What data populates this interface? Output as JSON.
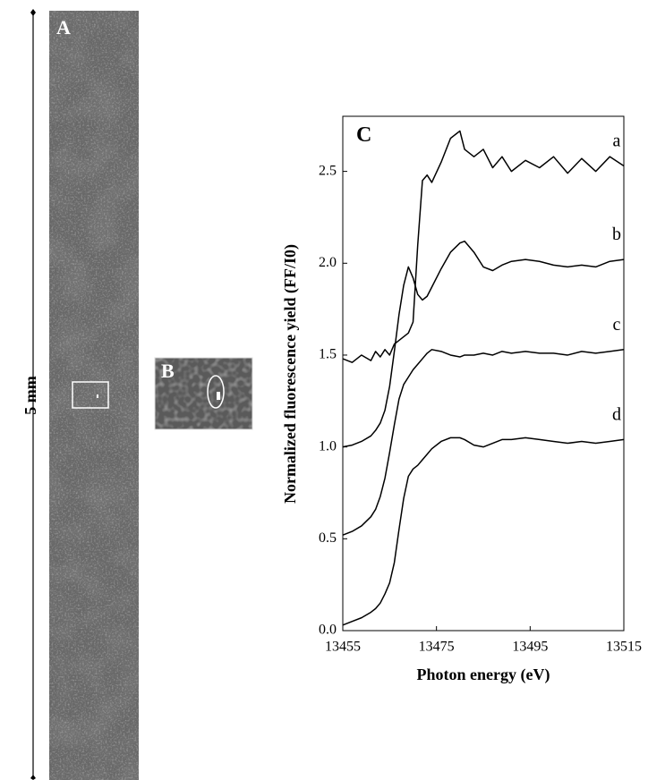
{
  "scale_bar": "5 mm",
  "panels": [
    {
      "label": "A"
    },
    {
      "label": "B"
    }
  ],
  "chart_data": {
    "type": "line",
    "panel_label": "C",
    "x_label": "Photon energy (eV)",
    "y_label": "Normalized fluorescence yield (FF/I0)",
    "xlim": [
      13455,
      13515
    ],
    "xticks": [
      13455,
      13475,
      13495,
      13515
    ],
    "ylim": [
      0,
      2.8
    ],
    "yticks": [
      {
        "value": 0,
        "label": "0.0"
      },
      0.5,
      {
        "value": 1,
        "label": "1.0"
      },
      1.5,
      {
        "value": 2,
        "label": "2.0"
      },
      2.5
    ],
    "x": [
      13455,
      13457,
      13459,
      13461,
      13462,
      13463,
      13464,
      13465,
      13466,
      13467,
      13468,
      13469,
      13470,
      13471,
      13472,
      13473,
      13474,
      13476,
      13478,
      13480,
      13481,
      13483,
      13485,
      13487,
      13489,
      13491,
      13494,
      13497,
      13500,
      13503,
      13506,
      13509,
      13512,
      13515
    ],
    "series": [
      {
        "name": "a",
        "color": "#000000",
        "values": [
          1.48,
          1.46,
          1.5,
          1.47,
          1.52,
          1.49,
          1.53,
          1.5,
          1.56,
          1.58,
          1.6,
          1.62,
          1.68,
          2.1,
          2.45,
          2.48,
          2.44,
          2.55,
          2.68,
          2.72,
          2.62,
          2.58,
          2.62,
          2.52,
          2.58,
          2.5,
          2.56,
          2.52,
          2.58,
          2.49,
          2.57,
          2.5,
          2.58,
          2.53
        ]
      },
      {
        "name": "b",
        "color": "#000000",
        "values": [
          1.0,
          1.01,
          1.03,
          1.06,
          1.09,
          1.13,
          1.2,
          1.33,
          1.52,
          1.72,
          1.88,
          1.98,
          1.92,
          1.83,
          1.8,
          1.82,
          1.87,
          1.97,
          2.06,
          2.11,
          2.12,
          2.06,
          1.98,
          1.96,
          1.99,
          2.01,
          2.02,
          2.01,
          1.99,
          1.98,
          1.99,
          1.98,
          2.01,
          2.02
        ]
      },
      {
        "name": "c",
        "color": "#000000",
        "values": [
          0.52,
          0.54,
          0.57,
          0.62,
          0.66,
          0.73,
          0.83,
          0.97,
          1.12,
          1.26,
          1.34,
          1.38,
          1.42,
          1.45,
          1.48,
          1.51,
          1.53,
          1.52,
          1.5,
          1.49,
          1.5,
          1.5,
          1.51,
          1.5,
          1.52,
          1.51,
          1.52,
          1.51,
          1.51,
          1.5,
          1.52,
          1.51,
          1.52,
          1.53
        ]
      },
      {
        "name": "d",
        "color": "#000000",
        "values": [
          0.03,
          0.05,
          0.07,
          0.1,
          0.12,
          0.15,
          0.2,
          0.26,
          0.37,
          0.55,
          0.72,
          0.84,
          0.88,
          0.9,
          0.93,
          0.96,
          0.99,
          1.03,
          1.05,
          1.05,
          1.04,
          1.01,
          1.0,
          1.02,
          1.04,
          1.04,
          1.05,
          1.04,
          1.03,
          1.02,
          1.03,
          1.02,
          1.03,
          1.04
        ]
      }
    ]
  }
}
